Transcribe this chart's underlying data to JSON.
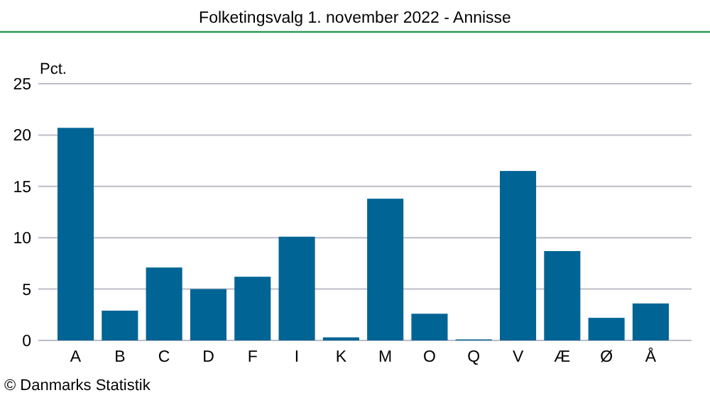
{
  "chart_data": {
    "type": "bar",
    "title": "Folketingsvalg 1. november 2022 - Annisse",
    "ylabel": "Pct.",
    "categories": [
      "A",
      "B",
      "C",
      "D",
      "F",
      "I",
      "K",
      "M",
      "O",
      "Q",
      "V",
      "Æ",
      "Ø",
      "Å"
    ],
    "values": [
      20.7,
      2.9,
      7.1,
      5.0,
      6.2,
      10.1,
      0.3,
      13.8,
      2.6,
      0.1,
      16.5,
      8.7,
      2.2,
      3.6
    ],
    "color": "#006495",
    "ylim": [
      0,
      25
    ],
    "yticks": [
      0,
      5,
      10,
      15,
      20,
      25
    ],
    "grid": "y",
    "annotations": [
      "© Danmarks Statistik"
    ]
  }
}
